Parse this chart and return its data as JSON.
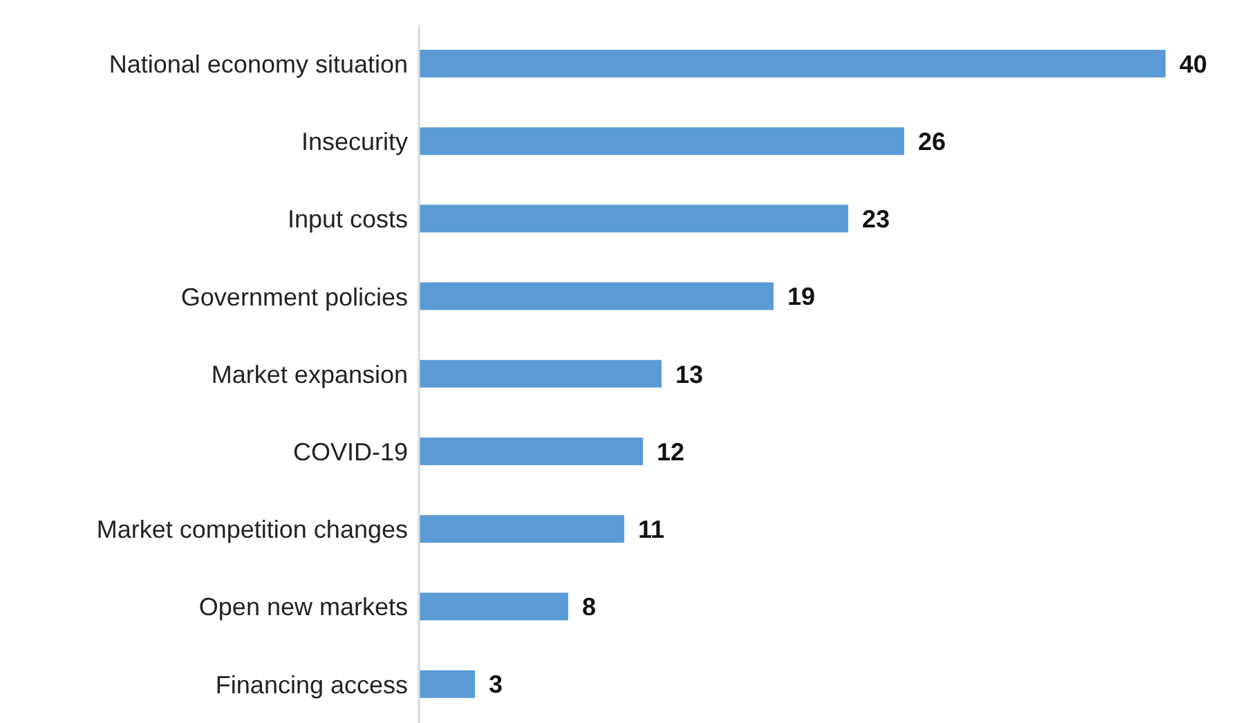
{
  "chart_data": {
    "type": "bar",
    "orientation": "horizontal",
    "data_labels": true,
    "grid": false,
    "legend": false,
    "categories": [
      "National economy situation",
      "Insecurity",
      "Input costs",
      "Government policies",
      "Market expansion",
      "COVID-19",
      "Market competition changes",
      "Open new markets",
      "Financing access"
    ],
    "values": [
      40,
      26,
      23,
      19,
      13,
      12,
      11,
      8,
      3
    ],
    "color": "#5b9bd5"
  }
}
